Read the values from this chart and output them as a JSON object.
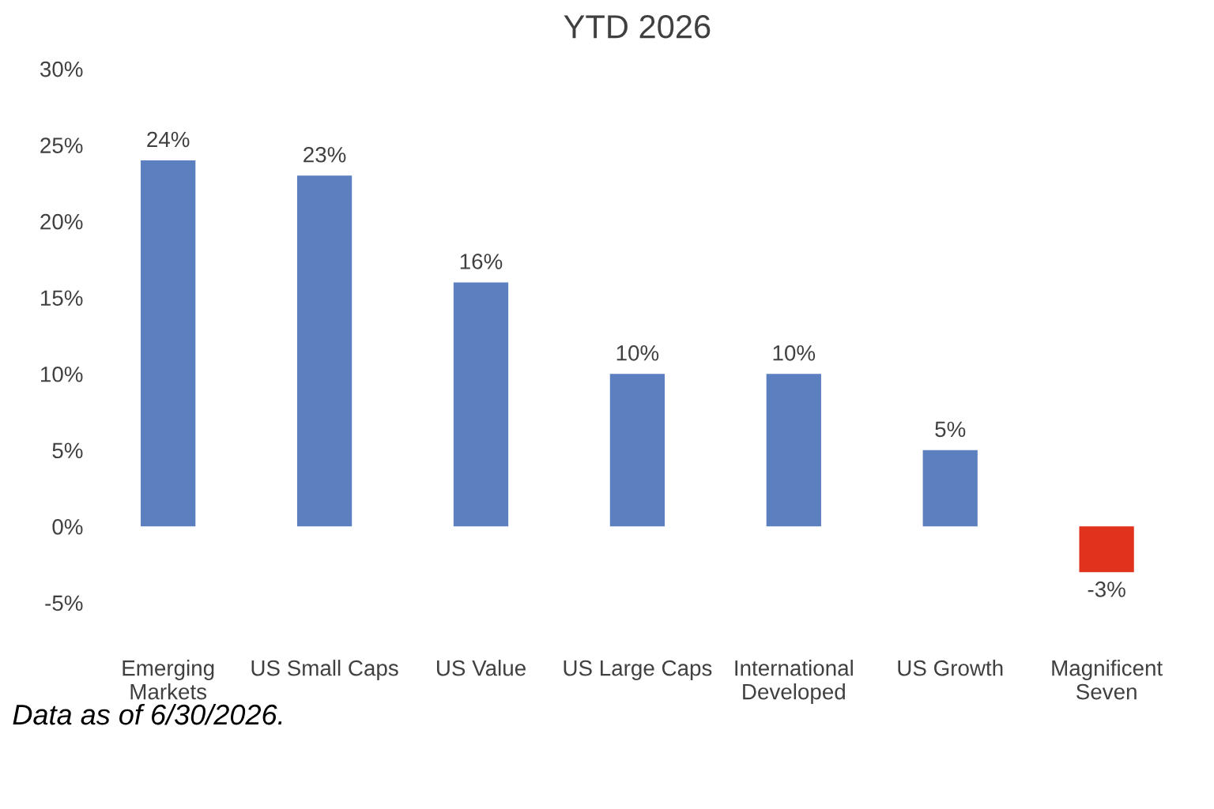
{
  "chart_data": {
    "type": "bar",
    "title": "YTD 2026",
    "categories": [
      "Emerging\nMarkets",
      "US Small Caps",
      "US Value",
      "US Large Caps",
      "International\nDeveloped",
      "US Growth",
      "Magnificent\nSeven"
    ],
    "values": [
      24,
      23,
      16,
      10,
      10,
      5,
      -3
    ],
    "colors": [
      "#5b7fbf",
      "#5b7fbf",
      "#5b7fbf",
      "#5b7fbf",
      "#5b7fbf",
      "#5b7fbf",
      "#e0321c"
    ],
    "value_labels": [
      "24%",
      "23%",
      "16%",
      "10%",
      "10%",
      "5%",
      "-3%"
    ],
    "ylim": [
      -5,
      30
    ],
    "yticks": [
      {
        "value": -5,
        "label": "-5%"
      },
      {
        "value": 0,
        "label": "0%"
      },
      {
        "value": 5,
        "label": "5%"
      },
      {
        "value": 10,
        "label": "10%"
      },
      {
        "value": 15,
        "label": "15%"
      },
      {
        "value": 20,
        "label": "20%"
      },
      {
        "value": 25,
        "label": "25%"
      },
      {
        "value": 30,
        "label": "30%"
      }
    ],
    "grid": false,
    "annotations": [
      "Data as of 6/30/2026."
    ]
  }
}
